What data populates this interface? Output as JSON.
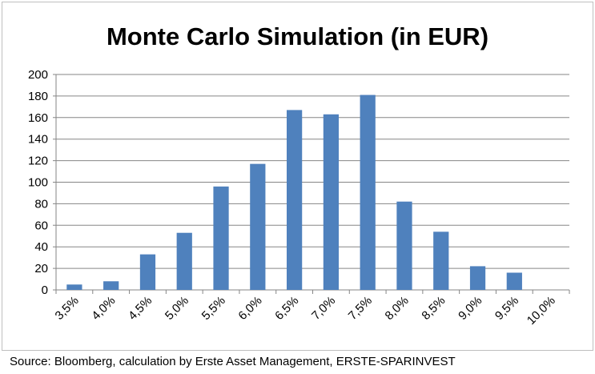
{
  "chart_data": {
    "type": "bar",
    "title": "Monte Carlo Simulation (in EUR)",
    "xlabel": "",
    "ylabel": "",
    "categories": [
      "3,5%",
      "4,0%",
      "4,5%",
      "5,0%",
      "5,5%",
      "6,0%",
      "6,5%",
      "7,0%",
      "7,5%",
      "8,0%",
      "8,5%",
      "9,0%",
      "9,5%",
      "10,0%"
    ],
    "values": [
      5,
      8,
      33,
      53,
      96,
      117,
      167,
      163,
      181,
      82,
      54,
      22,
      16,
      0
    ],
    "ylim": [
      0,
      200
    ],
    "yticks": [
      0,
      20,
      40,
      60,
      80,
      100,
      120,
      140,
      160,
      180,
      200
    ],
    "grid": true,
    "bar_color": "#4f81bd"
  },
  "source": "Source: Bloomberg, calculation by Erste Asset Management, ERSTE-SPARINVEST"
}
